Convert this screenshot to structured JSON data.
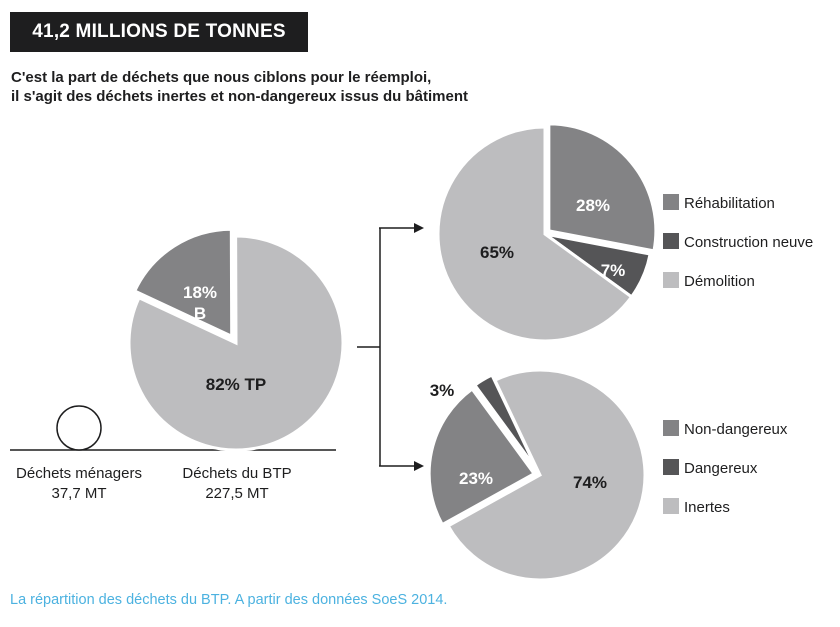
{
  "header": {
    "title": "41,2 MILLIONS DE TONNES",
    "subtitle_line1": "C'est la part de déchets que nous ciblons pour le réemploi,",
    "subtitle_line2": "il s'agit des déchets inertes et non-dangereux issus du bâtiment"
  },
  "caption": "La répartition des déchets du BTP. A partir des données SoeS 2014.",
  "colors": {
    "medium": "#838385",
    "dark": "#555557",
    "light": "#bdbdbf",
    "caption": "#4cb2e0"
  },
  "chart_data": [
    {
      "type": "pie",
      "slices": [
        {
          "label": "18%",
          "label2": "B",
          "value": 18,
          "color": "#838385",
          "text_color": "#ffffff"
        },
        {
          "label": "82% TP",
          "value": 82,
          "color": "#bdbdbf",
          "text_color": "#1e1e1f"
        }
      ],
      "comparison": {
        "name": "Déchets ménagers",
        "amount": "37,7 MT"
      },
      "main": {
        "name": "Déchets du BTP",
        "amount": "227,5 MT"
      }
    },
    {
      "type": "pie",
      "slices": [
        {
          "name": "Réhabilitation",
          "label": "28%",
          "value": 28,
          "color": "#838385",
          "text_color": "#ffffff"
        },
        {
          "name": "Construction neuve",
          "label": "7%",
          "value": 7,
          "color": "#555557",
          "text_color": "#ffffff"
        },
        {
          "name": "Démolition",
          "label": "65%",
          "value": 65,
          "color": "#bdbdbf",
          "text_color": "#1e1e1f"
        }
      ],
      "legend": "right"
    },
    {
      "type": "pie",
      "slices": [
        {
          "name": "Non-dangereux",
          "label": "23%",
          "value": 23,
          "color": "#838385",
          "text_color": "#ffffff"
        },
        {
          "name": "Dangereux",
          "label": "3%",
          "value": 3,
          "color": "#555557",
          "text_color": "#1e1e1f"
        },
        {
          "name": "Inertes",
          "label": "74%",
          "value": 74,
          "color": "#bdbdbf",
          "text_color": "#1e1e1f"
        }
      ],
      "legend": "right"
    }
  ]
}
